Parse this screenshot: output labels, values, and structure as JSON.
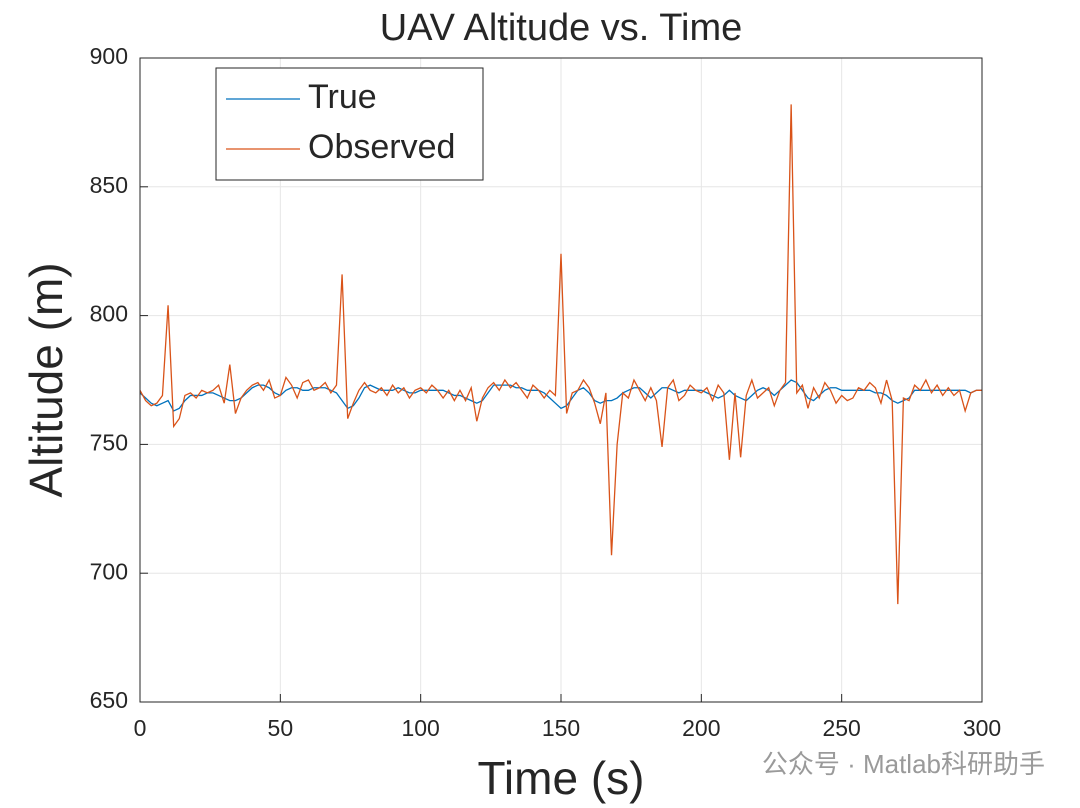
{
  "chart_data": {
    "type": "line",
    "title": "UAV Altitude vs. Time",
    "x_label": "Time (s)",
    "y_label": "Altitude (m)",
    "x": [
      0,
      2,
      4,
      6,
      8,
      10,
      12,
      14,
      16,
      18,
      20,
      22,
      24,
      26,
      28,
      30,
      32,
      34,
      36,
      38,
      40,
      42,
      44,
      46,
      48,
      50,
      52,
      54,
      56,
      58,
      60,
      62,
      64,
      66,
      68,
      70,
      72,
      74,
      76,
      78,
      80,
      82,
      84,
      86,
      88,
      90,
      92,
      94,
      96,
      98,
      100,
      102,
      104,
      106,
      108,
      110,
      112,
      114,
      116,
      118,
      120,
      122,
      124,
      126,
      128,
      130,
      132,
      134,
      136,
      138,
      140,
      142,
      144,
      146,
      148,
      150,
      152,
      154,
      156,
      158,
      160,
      162,
      164,
      166,
      168,
      170,
      172,
      174,
      176,
      178,
      180,
      182,
      184,
      186,
      188,
      190,
      192,
      194,
      196,
      198,
      200,
      202,
      204,
      206,
      208,
      210,
      212,
      214,
      216,
      218,
      220,
      222,
      224,
      226,
      228,
      230,
      232,
      234,
      236,
      238,
      240,
      242,
      244,
      246,
      248,
      250,
      252,
      254,
      256,
      258,
      260,
      262,
      264,
      266,
      268,
      270,
      272,
      274,
      276,
      278,
      280,
      282,
      284,
      286,
      288,
      290,
      292,
      294,
      296,
      298,
      300
    ],
    "series": [
      {
        "name": "True",
        "color": "#0072BD",
        "values": [
          770,
          768,
          766,
          765,
          766,
          767,
          763,
          764,
          767,
          769,
          769,
          769,
          770,
          770,
          769,
          768,
          767,
          767,
          768,
          770,
          772,
          773,
          773,
          772,
          770,
          769,
          771,
          772,
          772,
          771,
          771,
          772,
          772,
          772,
          771,
          770,
          767,
          764,
          765,
          768,
          772,
          773,
          772,
          771,
          771,
          771,
          772,
          771,
          770,
          770,
          771,
          771,
          771,
          771,
          771,
          770,
          769,
          769,
          768,
          767,
          766,
          767,
          770,
          773,
          773,
          773,
          773,
          772,
          772,
          771,
          771,
          771,
          770,
          768,
          766,
          764,
          765,
          768,
          771,
          772,
          770,
          767,
          766,
          767,
          767,
          768,
          770,
          771,
          772,
          772,
          770,
          768,
          770,
          772,
          772,
          771,
          770,
          771,
          771,
          771,
          771,
          770,
          769,
          768,
          769,
          771,
          769,
          768,
          767,
          769,
          771,
          772,
          771,
          769,
          771,
          773,
          775,
          774,
          771,
          768,
          767,
          769,
          771,
          772,
          772,
          771,
          771,
          771,
          771,
          771,
          771,
          770,
          770,
          769,
          767,
          766,
          767,
          768,
          771,
          771,
          771,
          771,
          771,
          771,
          771,
          771,
          771,
          771,
          770,
          771,
          771
        ]
      },
      {
        "name": "Observed",
        "color": "#D95319",
        "values": [
          771,
          767,
          765,
          766,
          769,
          804,
          757,
          760,
          769,
          770,
          768,
          771,
          770,
          771,
          773,
          766,
          781,
          762,
          768,
          771,
          773,
          774,
          771,
          775,
          768,
          769,
          776,
          773,
          768,
          774,
          775,
          771,
          772,
          774,
          770,
          773,
          816,
          760,
          766,
          771,
          774,
          771,
          770,
          772,
          769,
          773,
          770,
          772,
          768,
          771,
          772,
          770,
          773,
          771,
          768,
          771,
          767,
          771,
          767,
          772,
          759,
          768,
          772,
          774,
          771,
          775,
          772,
          774,
          771,
          768,
          773,
          771,
          768,
          771,
          769,
          824,
          762,
          770,
          771,
          775,
          772,
          766,
          758,
          770,
          707,
          750,
          770,
          768,
          775,
          771,
          767,
          772,
          767,
          749,
          772,
          775,
          767,
          769,
          773,
          771,
          770,
          772,
          767,
          773,
          770,
          744,
          770,
          745,
          769,
          775,
          768,
          770,
          772,
          765,
          771,
          774,
          882,
          770,
          773,
          764,
          772,
          768,
          774,
          771,
          766,
          769,
          767,
          768,
          772,
          771,
          774,
          772,
          766,
          775,
          767,
          688,
          768,
          767,
          773,
          771,
          775,
          770,
          773,
          769,
          772,
          769,
          771,
          763,
          770,
          771,
          771
        ]
      }
    ],
    "xlim": [
      0,
      300
    ],
    "xticks": [
      0,
      50,
      100,
      150,
      200,
      250,
      300
    ],
    "ylim": [
      650,
      900
    ],
    "yticks": [
      650,
      700,
      750,
      800,
      850,
      900
    ],
    "grid": true,
    "legend": "upper-left"
  },
  "watermark": "公众号 · Matlab科研助手"
}
